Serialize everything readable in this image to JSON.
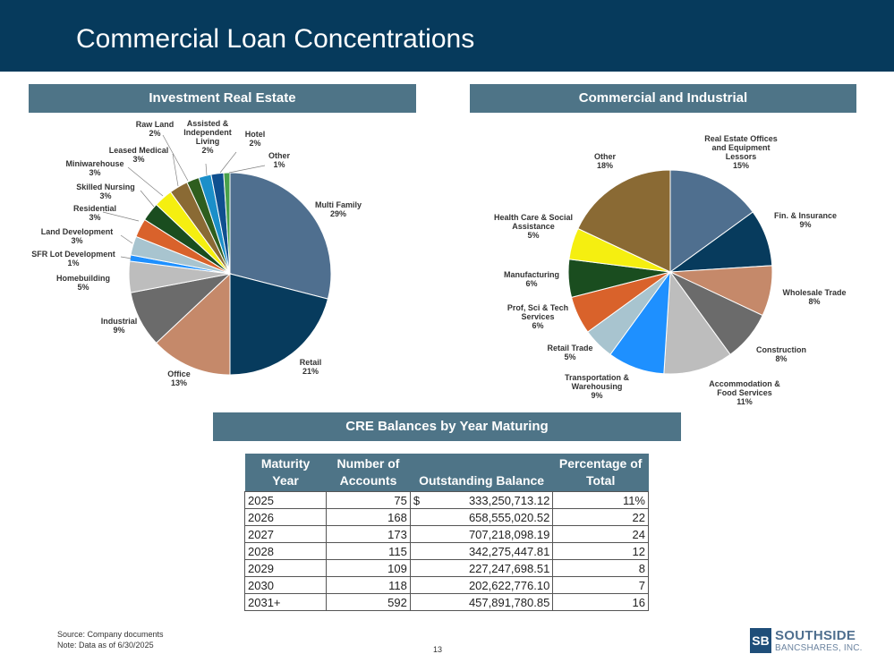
{
  "title": "Commercial Loan Concentrations",
  "sections": {
    "investment": "Investment Real Estate",
    "ci": "Commercial and Industrial",
    "cre": "CRE Balances by Year Maturing"
  },
  "chart_data": [
    {
      "type": "pie",
      "title": "Investment Real Estate",
      "slices": [
        {
          "label": [
            "Multi Family"
          ],
          "value": 29,
          "pct": "29%",
          "color": "#4f6f8f"
        },
        {
          "label": [
            "Retail"
          ],
          "value": 21,
          "pct": "21%",
          "color": "#073b5d"
        },
        {
          "label": [
            "Office"
          ],
          "value": 13,
          "pct": "13%",
          "color": "#c5896a"
        },
        {
          "label": [
            "Industrial"
          ],
          "value": 9,
          "pct": "9%",
          "color": "#6b6b6b"
        },
        {
          "label": [
            "Homebuilding"
          ],
          "value": 5,
          "pct": "5%",
          "color": "#bdbdbd"
        },
        {
          "label": [
            "SFR Lot Development"
          ],
          "value": 1,
          "pct": "1%",
          "color": "#1e90ff"
        },
        {
          "label": [
            "Land Development"
          ],
          "value": 3,
          "pct": "3%",
          "color": "#a8c4cf"
        },
        {
          "label": [
            "Residential"
          ],
          "value": 3,
          "pct": "3%",
          "color": "#d9622b"
        },
        {
          "label": [
            "Skilled Nursing"
          ],
          "value": 3,
          "pct": "3%",
          "color": "#1a4d1f"
        },
        {
          "label": [
            "Miniwarehouse"
          ],
          "value": 3,
          "pct": "3%",
          "color": "#f5ef10"
        },
        {
          "label": [
            "Leased Medical"
          ],
          "value": 3,
          "pct": "3%",
          "color": "#8a6a34"
        },
        {
          "label": [
            "Raw Land"
          ],
          "value": 2,
          "pct": "2%",
          "color": "#2e5e1e"
        },
        {
          "label": [
            "Assisted &",
            "Independent",
            "Living"
          ],
          "value": 2,
          "pct": "2%",
          "color": "#1b8fc9"
        },
        {
          "label": [
            "Hotel"
          ],
          "value": 2,
          "pct": "2%",
          "color": "#0f4f8f"
        },
        {
          "label": [
            "Other"
          ],
          "value": 1,
          "pct": "1%",
          "color": "#48a04a"
        }
      ]
    },
    {
      "type": "pie",
      "title": "Commercial and Industrial",
      "slices": [
        {
          "label": [
            "Real Estate Offices",
            "and Equipment",
            "Lessors"
          ],
          "value": 15,
          "pct": "15%",
          "color": "#4f6f8f"
        },
        {
          "label": [
            "Fin. & Insurance"
          ],
          "value": 9,
          "pct": "9%",
          "color": "#073b5d"
        },
        {
          "label": [
            "Wholesale Trade"
          ],
          "value": 8,
          "pct": "8%",
          "color": "#c5896a"
        },
        {
          "label": [
            "Construction"
          ],
          "value": 8,
          "pct": "8%",
          "color": "#6b6b6b"
        },
        {
          "label": [
            "Accommodation &",
            "Food Services"
          ],
          "value": 11,
          "pct": "11%",
          "color": "#bdbdbd"
        },
        {
          "label": [
            "Transportation &",
            "Warehousing"
          ],
          "value": 9,
          "pct": "9%",
          "color": "#1e90ff"
        },
        {
          "label": [
            "Retail Trade"
          ],
          "value": 5,
          "pct": "5%",
          "color": "#a8c4cf"
        },
        {
          "label": [
            "Prof, Sci & Tech",
            "Services"
          ],
          "value": 6,
          "pct": "6%",
          "color": "#d9622b"
        },
        {
          "label": [
            "Manufacturing"
          ],
          "value": 6,
          "pct": "6%",
          "color": "#1a4d1f"
        },
        {
          "label": [
            "Health Care & Social",
            "Assistance"
          ],
          "value": 5,
          "pct": "5%",
          "color": "#f5ef10"
        },
        {
          "label": [
            "Other"
          ],
          "value": 18,
          "pct": "18%",
          "color": "#8a6a34"
        }
      ]
    }
  ],
  "table": {
    "headers": {
      "year": [
        "Maturity",
        "Year"
      ],
      "accounts": [
        "Number of",
        "Accounts"
      ],
      "balance": [
        "",
        "Outstanding Balance"
      ],
      "pct": [
        "Percentage of",
        "Total"
      ]
    },
    "rows": [
      {
        "year": "2025",
        "accounts": "75",
        "currency": "$",
        "balance": "333,250,713.12",
        "pct": "11%"
      },
      {
        "year": "2026",
        "accounts": "168",
        "currency": "",
        "balance": "658,555,020.52",
        "pct": "22"
      },
      {
        "year": "2027",
        "accounts": "173",
        "currency": "",
        "balance": "707,218,098.19",
        "pct": "24"
      },
      {
        "year": "2028",
        "accounts": "115",
        "currency": "",
        "balance": "342,275,447.81",
        "pct": "12"
      },
      {
        "year": "2029",
        "accounts": "109",
        "currency": "",
        "balance": "227,247,698.51",
        "pct": "8"
      },
      {
        "year": "2030",
        "accounts": "118",
        "currency": "",
        "balance": "202,622,776.10",
        "pct": "7"
      },
      {
        "year": "2031+",
        "accounts": "592",
        "currency": "",
        "balance": "457,891,780.85",
        "pct": "16"
      }
    ]
  },
  "footer": {
    "source": "Source: Company documents",
    "note": "Note: Data as of 6/30/2025",
    "page": "13"
  },
  "logo": {
    "mark": "SB",
    "line1": "SOUTHSIDE",
    "line2": "BANCSHARES, INC."
  }
}
